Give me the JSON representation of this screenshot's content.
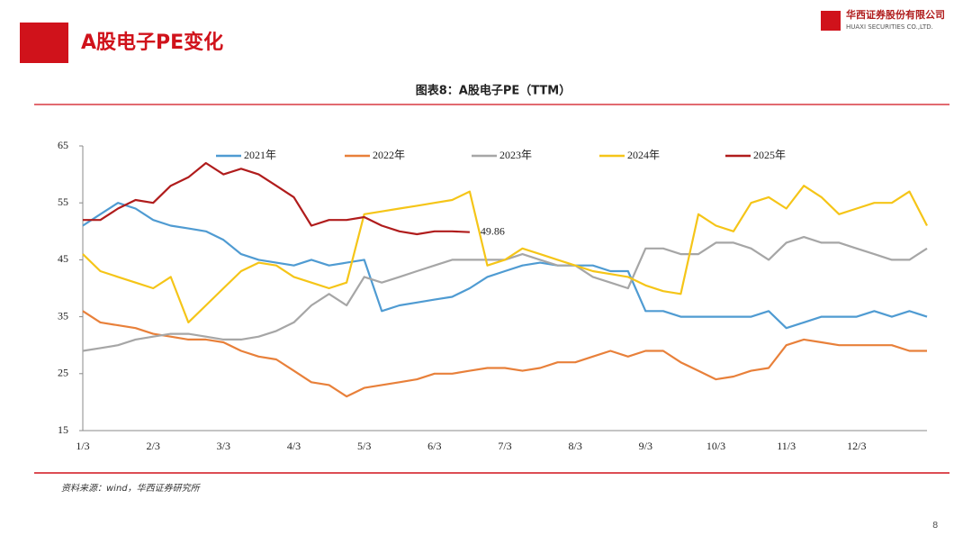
{
  "header": {
    "title": "A股电子PE变化",
    "company": "华西证券股份有限公司",
    "company_en": "HUAXI SECURITIES CO.,LTD."
  },
  "chart_data": {
    "type": "line",
    "title": "图表8：A股电子PE（TTM）",
    "categories": [
      "1/3",
      null,
      null,
      null,
      "2/3",
      null,
      null,
      null,
      "3/3",
      null,
      null,
      null,
      "4/3",
      null,
      null,
      null,
      "5/3",
      null,
      null,
      null,
      "6/3",
      null,
      null,
      null,
      "7/3",
      null,
      null,
      null,
      "8/3",
      null,
      null,
      null,
      "9/3",
      null,
      null,
      null,
      "10/3",
      null,
      null,
      null,
      "11/3",
      null,
      null,
      null,
      "12/3",
      null,
      null,
      null,
      null
    ],
    "ylim": [
      15,
      65
    ],
    "yticks": [
      15,
      25,
      35,
      45,
      55,
      65
    ],
    "legend": "top",
    "series": [
      {
        "name": "2021年",
        "color": "#4f9bd2",
        "values": [
          51,
          53,
          55,
          54,
          52,
          51,
          50.5,
          50,
          48.5,
          46,
          45,
          44.5,
          44,
          45,
          44,
          44.5,
          45,
          36,
          37,
          37.5,
          38,
          38.5,
          40,
          42,
          43,
          44,
          44.5,
          44,
          44,
          44,
          43,
          43,
          36,
          36,
          35,
          35,
          35,
          35,
          35,
          36,
          33,
          34,
          35,
          35,
          35,
          36,
          35,
          36,
          35
        ]
      },
      {
        "name": "2022年",
        "color": "#e8803a",
        "values": [
          36,
          34,
          33.5,
          33,
          32,
          31.5,
          31,
          31,
          30.5,
          29,
          28,
          27.5,
          25.5,
          23.5,
          23,
          21,
          22.5,
          23,
          23.5,
          24,
          25,
          25,
          25.5,
          26,
          26,
          25.5,
          26,
          27,
          27,
          28,
          29,
          28,
          29,
          29,
          27,
          25.5,
          24,
          24.5,
          25.5,
          26,
          30,
          31,
          30.5,
          30,
          30,
          30,
          30,
          29,
          29
        ]
      },
      {
        "name": "2023年",
        "color": "#a6a6a6",
        "values": [
          29,
          29.5,
          30,
          31,
          31.5,
          32,
          32,
          31.5,
          31,
          31,
          31.5,
          32.5,
          34,
          37,
          39,
          37,
          42,
          41,
          42,
          43,
          44,
          45,
          45,
          45,
          45,
          46,
          45,
          44,
          44,
          42,
          41,
          40,
          47,
          47,
          46,
          46,
          48,
          48,
          47,
          45,
          48,
          49,
          48,
          48,
          47,
          46,
          45,
          45,
          47
        ]
      },
      {
        "name": "2024年",
        "color": "#f5c518",
        "values": [
          46,
          43,
          42,
          41,
          40,
          42,
          34,
          37,
          40,
          43,
          44.5,
          44,
          42,
          41,
          40,
          41,
          53,
          53.5,
          54,
          54.5,
          55,
          55.5,
          57,
          44,
          45,
          47,
          46,
          45,
          44,
          43,
          42.5,
          42,
          40.5,
          39.5,
          39,
          53,
          51,
          50,
          55,
          56,
          54,
          58,
          56,
          53,
          54,
          55,
          55,
          57,
          51
        ]
      },
      {
        "name": "2025年",
        "color": "#b01c1c",
        "values": [
          52,
          52,
          54,
          55.5,
          55,
          58,
          59.5,
          62,
          60,
          61,
          60,
          58,
          56,
          51,
          52,
          52,
          52.5,
          51,
          50,
          49.5,
          50,
          50,
          49.86,
          null,
          null,
          null,
          null,
          null,
          null,
          null,
          null,
          null,
          null,
          null,
          null,
          null,
          null,
          null,
          null,
          null,
          null,
          null,
          null,
          null,
          null,
          null,
          null,
          null,
          null
        ],
        "value_labels": [
          null,
          null,
          null,
          null,
          null,
          null,
          null,
          null,
          null,
          null,
          null,
          null,
          null,
          null,
          null,
          null,
          null,
          null,
          null,
          null,
          null,
          null,
          "49.86",
          null,
          null,
          null,
          null,
          null,
          null,
          null,
          null,
          null,
          null,
          null,
          null,
          null,
          null,
          null,
          null,
          null,
          null,
          null,
          null,
          null,
          null,
          null,
          null,
          null,
          null
        ]
      }
    ]
  },
  "footer": {
    "source": "资料来源：wind，华西证券研究所",
    "page": "8"
  }
}
